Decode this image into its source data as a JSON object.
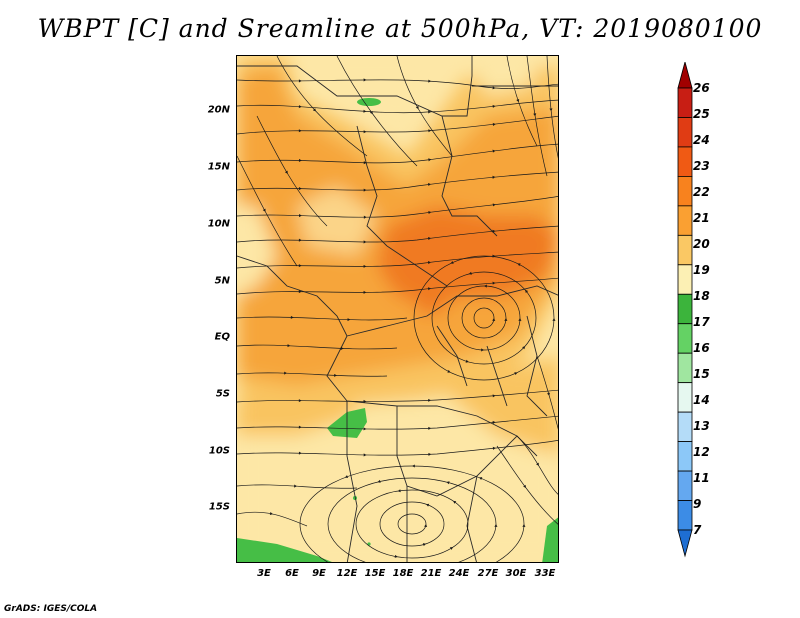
{
  "title": "WBPT [C] and Sreamline at 500hPa, VT: 2019080100",
  "footer": "GrADS: IGES/COLA",
  "axes": {
    "y_ticks": [
      "20N",
      "15N",
      "10N",
      "5N",
      "EQ",
      "5S",
      "10S",
      "15S"
    ],
    "x_ticks": [
      "3E",
      "6E",
      "9E",
      "12E",
      "15E",
      "18E",
      "21E",
      "24E",
      "27E",
      "30E",
      "33E"
    ]
  },
  "colorbar": {
    "labels": [
      "26",
      "25",
      "24",
      "23",
      "22",
      "21",
      "20",
      "19",
      "18",
      "17",
      "16",
      "15",
      "14",
      "13",
      "12",
      "11",
      "9",
      "7"
    ],
    "colors": [
      "#a00000",
      "#c81e14",
      "#e03c14",
      "#f05a14",
      "#f8821e",
      "#faa032",
      "#fac864",
      "#fcf0b4",
      "#3cb43c",
      "#64d264",
      "#a0e6a0",
      "#e6f8f0",
      "#b4dcf8",
      "#8cc8f8",
      "#64a8f0",
      "#3c8ce6",
      "#1e6ed2"
    ]
  },
  "colors": {
    "light": "#fde7a6",
    "mid": "#f9c461",
    "orange": "#f6a53a",
    "dark_orange": "#f07a22",
    "green": "#46be46",
    "streamline": "#1a1a1a"
  }
}
